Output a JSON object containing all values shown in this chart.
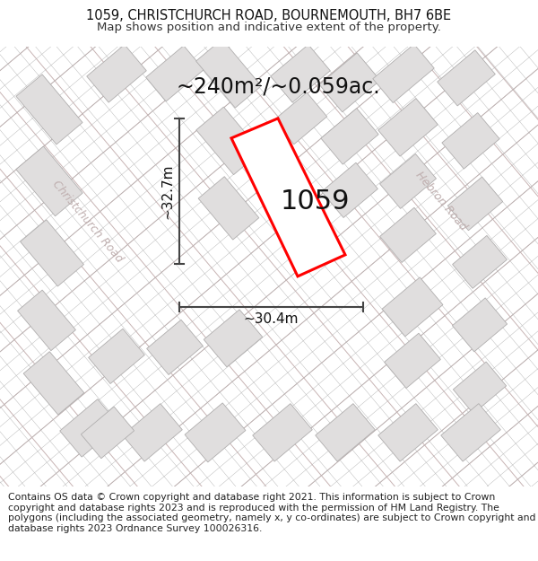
{
  "title_line1": "1059, CHRISTCHURCH ROAD, BOURNEMOUTH, BH7 6BE",
  "title_line2": "Map shows position and indicative extent of the property.",
  "area_label": "~240m²/~0.059ac.",
  "property_label": "1059",
  "width_label": "~30.4m",
  "height_label": "~32.7m",
  "footer_text": "Contains OS data © Crown copyright and database right 2021. This information is subject to Crown copyright and database rights 2023 and is reproduced with the permission of HM Land Registry. The polygons (including the associated geometry, namely x, y co-ordinates) are subject to Crown copyright and database rights 2023 Ordnance Survey 100026316.",
  "map_bg": "#ffffff",
  "property_color": "#ff0000",
  "lot_line_color": "#c8b4b4",
  "cad_line_color": "#b0b0b0",
  "bldg_fill": "#e0dede",
  "bldg_edge": "#b0aeae",
  "road_label_color": "#c0b0b0",
  "title_fontsize": 10.5,
  "subtitle_fontsize": 9.5,
  "area_fontsize": 17,
  "prop_label_fontsize": 22,
  "meas_fontsize": 11,
  "road_fontsize": 9,
  "footer_fontsize": 7.8
}
